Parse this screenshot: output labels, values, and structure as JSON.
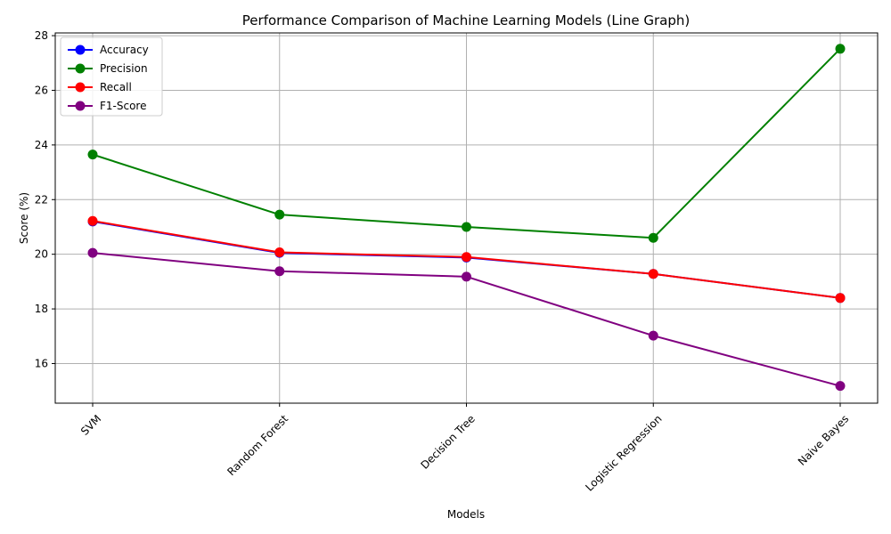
{
  "chart_data": {
    "type": "line",
    "title": "Performance Comparison of Machine Learning Models (Line Graph)",
    "xlabel": "Models",
    "ylabel": "Score (%)",
    "categories": [
      "SVM",
      "Random Forest",
      "Decision Tree",
      "Logistic Regression",
      "Naive Bayes"
    ],
    "ylim": [
      14.55,
      28.1
    ],
    "yticks": [
      16,
      18,
      20,
      22,
      24,
      26,
      28
    ],
    "grid": true,
    "legend_position": "top-left",
    "series": [
      {
        "name": "Accuracy",
        "color": "#0000ff",
        "values": [
          21.2,
          20.05,
          19.88,
          19.28,
          18.4
        ]
      },
      {
        "name": "Precision",
        "color": "#008000",
        "values": [
          23.65,
          21.45,
          21.0,
          20.6,
          27.52
        ]
      },
      {
        "name": "Recall",
        "color": "#ff0000",
        "values": [
          21.22,
          20.07,
          19.9,
          19.28,
          18.4
        ]
      },
      {
        "name": "F1-Score",
        "color": "#800080",
        "values": [
          20.05,
          19.38,
          19.18,
          17.02,
          15.18
        ]
      }
    ]
  }
}
